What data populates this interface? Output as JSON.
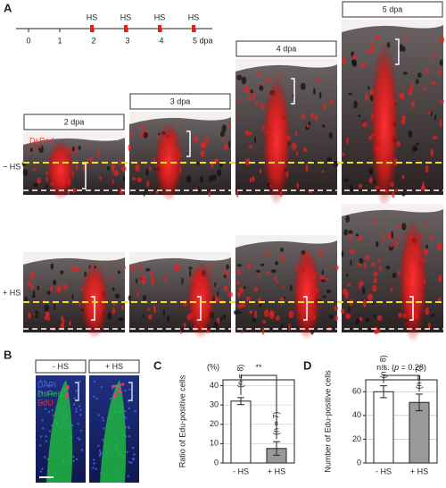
{
  "panel_labels": [
    "A",
    "B",
    "C",
    "D"
  ],
  "timeline": {
    "labels": [
      "0",
      "1",
      "2",
      "3",
      "4",
      "5 dpa"
    ],
    "heat_shock": [
      "HS",
      "HS",
      "HS",
      "HS"
    ]
  },
  "panel_a": {
    "stages": [
      "2 dpa",
      "3 dpa",
      "4 dpa",
      "5 dpa"
    ],
    "channel": "DsRed",
    "rows": [
      "− HS",
      "+ HS"
    ]
  },
  "panel_b": {
    "conditions": [
      "- HS",
      "+ HS"
    ],
    "channels": [
      "DAPI",
      "DsRed",
      "EdU"
    ]
  },
  "chart_data": [
    {
      "type": "bar",
      "unit": "(%)",
      "y_label": "Ratio of Edu-positive cells",
      "categories": [
        "- HS",
        "+ HS"
      ],
      "values": [
        32,
        7.5
      ],
      "errors": [
        1.8,
        3.5
      ],
      "colors": [
        "#ffffff",
        "#999999"
      ],
      "annotations": [
        "(n = 8)",
        "(n = 7)"
      ],
      "significance": [
        "**"
      ],
      "ylim": [
        0,
        43
      ],
      "yticks": [
        0,
        10,
        20,
        30,
        40
      ],
      "grid": true
    },
    {
      "type": "bar",
      "y_label": "Number of Edu-positive cells",
      "categories": [
        "- HS",
        "+ HS"
      ],
      "values": [
        60,
        51
      ],
      "errors": [
        5,
        7
      ],
      "colors": [
        "#ffffff",
        "#999999"
      ],
      "annotations": [
        "(n = 8)",
        "(n = 7)"
      ],
      "significance": [
        "n.s. (",
        "p",
        " = 0.28)"
      ],
      "ylim": [
        0,
        70
      ],
      "yticks": [
        0,
        20,
        40,
        60
      ],
      "grid": true
    }
  ]
}
